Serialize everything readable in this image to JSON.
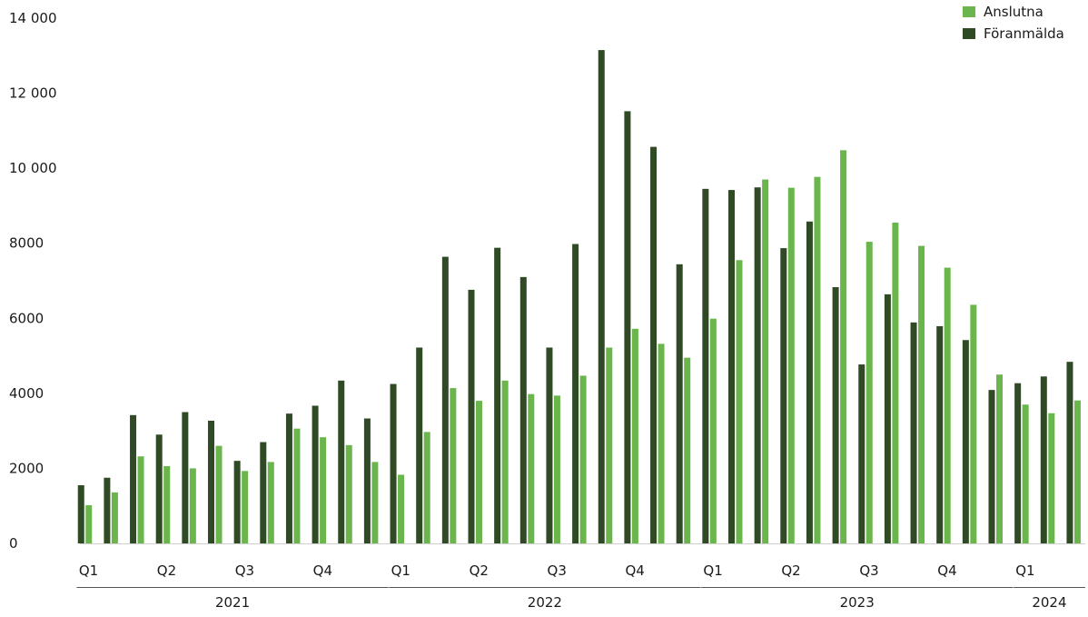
{
  "chart_data": {
    "type": "bar",
    "title": "",
    "xlabel": "",
    "ylabel": "",
    "ylim": [
      0,
      14000
    ],
    "yticks": [
      0,
      2000,
      4000,
      6000,
      8000,
      10000,
      12000,
      14000
    ],
    "ytick_labels": [
      "0",
      "2000",
      "4000",
      "6000",
      "8000",
      "10 000",
      "12 000",
      "14 000"
    ],
    "grid": false,
    "legend_position": "top-right",
    "categories": [
      "2021-01",
      "2021-02",
      "2021-03",
      "2021-04",
      "2021-05",
      "2021-06",
      "2021-07",
      "2021-08",
      "2021-09",
      "2021-10",
      "2021-11",
      "2021-12",
      "2022-01",
      "2022-02",
      "2022-03",
      "2022-04",
      "2022-05",
      "2022-06",
      "2022-07",
      "2022-08",
      "2022-09",
      "2022-10",
      "2022-11",
      "2022-12",
      "2023-01",
      "2023-02",
      "2023-03",
      "2023-04",
      "2023-05",
      "2023-06",
      "2023-07",
      "2023-08",
      "2023-09",
      "2023-10",
      "2023-11",
      "2023-12",
      "2024-01",
      "2024-02",
      "2024-03"
    ],
    "series": [
      {
        "name": "Föranmälda",
        "color": "#2f4a25",
        "values": [
          1550,
          1750,
          3420,
          2900,
          3500,
          3270,
          2200,
          2700,
          3460,
          3670,
          4340,
          3330,
          4250,
          5220,
          7640,
          6760,
          7880,
          7100,
          5220,
          7980,
          13150,
          11520,
          10570,
          7440,
          9450,
          9420,
          9490,
          7870,
          8580,
          6830,
          4770,
          6640,
          5890,
          5790,
          5420,
          4090,
          4270,
          4450,
          4840
        ]
      },
      {
        "name": "Anslutna",
        "color": "#6ab64c",
        "values": [
          1020,
          1360,
          2320,
          2060,
          2000,
          2600,
          1930,
          2170,
          3060,
          2830,
          2620,
          2170,
          1830,
          2970,
          4140,
          3800,
          4340,
          3980,
          3940,
          4470,
          5220,
          5720,
          5320,
          4950,
          5990,
          7550,
          9700,
          9480,
          9770,
          10480,
          8040,
          8550,
          7930,
          7350,
          6360,
          4500,
          3700,
          3470,
          3810
        ]
      }
    ],
    "quarter_labels": [
      {
        "label": "Q1",
        "month_index": 0
      },
      {
        "label": "Q2",
        "month_index": 3
      },
      {
        "label": "Q3",
        "month_index": 6
      },
      {
        "label": "Q4",
        "month_index": 9
      },
      {
        "label": "Q1",
        "month_index": 12
      },
      {
        "label": "Q2",
        "month_index": 15
      },
      {
        "label": "Q3",
        "month_index": 18
      },
      {
        "label": "Q4",
        "month_index": 21
      },
      {
        "label": "Q1",
        "month_index": 24
      },
      {
        "label": "Q2",
        "month_index": 27
      },
      {
        "label": "Q3",
        "month_index": 30
      },
      {
        "label": "Q4",
        "month_index": 33
      },
      {
        "label": "Q1",
        "month_index": 36
      }
    ],
    "year_groups": [
      {
        "label": "2021",
        "start_month": 0,
        "end_month": 11
      },
      {
        "label": "2022",
        "start_month": 12,
        "end_month": 23
      },
      {
        "label": "2023",
        "start_month": 24,
        "end_month": 35
      },
      {
        "label": "2024",
        "start_month": 36,
        "end_month": 38
      }
    ]
  }
}
